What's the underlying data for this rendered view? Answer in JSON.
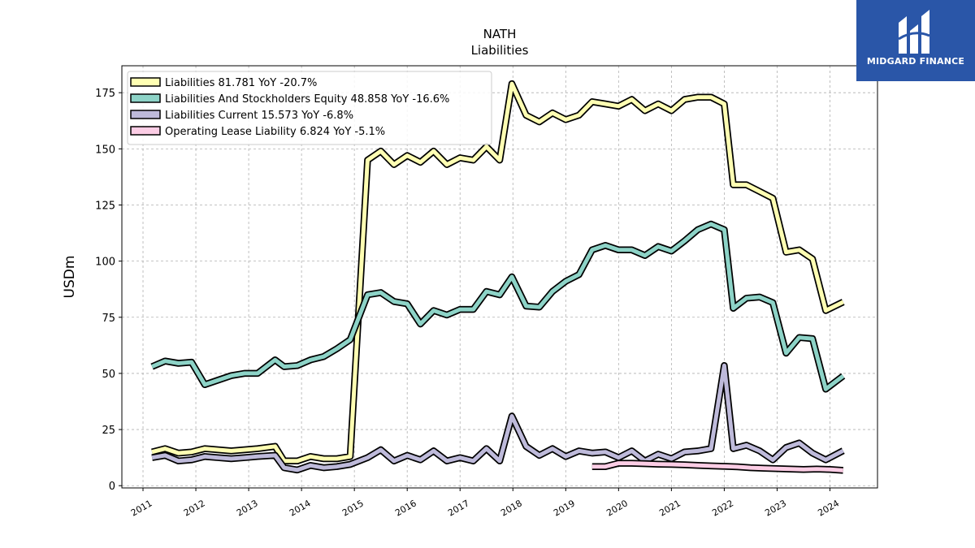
{
  "brand": {
    "name": "MIDGARD FINANCE",
    "color": "#2a56a8",
    "icon": "midgard-logo-icon"
  },
  "chart_data": {
    "type": "line",
    "title": "NATH",
    "subtitle": "Liabilities",
    "ylabel": "USDm",
    "xlabel": "",
    "ylim": [
      -1,
      187
    ],
    "xlim": [
      2010.6,
      2024.9
    ],
    "yticks": [
      0,
      25,
      50,
      75,
      100,
      125,
      150,
      175
    ],
    "xticks": [
      "2011",
      "2012",
      "2013",
      "2014",
      "2015",
      "2016",
      "2017",
      "2018",
      "2019",
      "2020",
      "2021",
      "2022",
      "2023",
      "2024"
    ],
    "grid": true,
    "legend_position": "top-left",
    "series": [
      {
        "name": "Liabilities",
        "legend_label": "Liabilities  81.781 YoY -20.7%",
        "color": "#ffffb3",
        "points": [
          [
            2011.17,
            15
          ],
          [
            2011.42,
            16.5
          ],
          [
            2011.67,
            14.5
          ],
          [
            2011.92,
            15
          ],
          [
            2012.17,
            16.5
          ],
          [
            2012.42,
            16
          ],
          [
            2012.67,
            15.5
          ],
          [
            2012.92,
            16
          ],
          [
            2013.17,
            16.5
          ],
          [
            2013.5,
            17.5
          ],
          [
            2013.67,
            11
          ],
          [
            2013.92,
            11
          ],
          [
            2014.17,
            13
          ],
          [
            2014.42,
            12
          ],
          [
            2014.67,
            12
          ],
          [
            2014.92,
            13
          ],
          [
            2015.25,
            145
          ],
          [
            2015.5,
            149
          ],
          [
            2015.75,
            143
          ],
          [
            2016.0,
            147
          ],
          [
            2016.25,
            144
          ],
          [
            2016.5,
            149
          ],
          [
            2016.75,
            143
          ],
          [
            2017.0,
            146
          ],
          [
            2017.25,
            145
          ],
          [
            2017.5,
            151
          ],
          [
            2017.75,
            145
          ],
          [
            2017.98,
            179
          ],
          [
            2018.25,
            165
          ],
          [
            2018.5,
            162
          ],
          [
            2018.75,
            166
          ],
          [
            2019.0,
            163
          ],
          [
            2019.25,
            165
          ],
          [
            2019.5,
            171
          ],
          [
            2019.75,
            170
          ],
          [
            2020.0,
            169
          ],
          [
            2020.25,
            172
          ],
          [
            2020.5,
            167
          ],
          [
            2020.75,
            170
          ],
          [
            2021.0,
            167
          ],
          [
            2021.25,
            172
          ],
          [
            2021.5,
            173
          ],
          [
            2021.75,
            173
          ],
          [
            2022.0,
            170
          ],
          [
            2022.17,
            134
          ],
          [
            2022.42,
            134
          ],
          [
            2022.67,
            131
          ],
          [
            2022.92,
            128
          ],
          [
            2023.17,
            104
          ],
          [
            2023.42,
            105
          ],
          [
            2023.67,
            101
          ],
          [
            2023.92,
            78
          ],
          [
            2024.25,
            81.781
          ]
        ]
      },
      {
        "name": "Liabilities And Stockholders Equity",
        "legend_label": "Liabilities And Stockholders Equity  48.858 YoY -16.6%",
        "color": "#8dd3c7",
        "points": [
          [
            2011.17,
            53
          ],
          [
            2011.42,
            55.5
          ],
          [
            2011.67,
            54.5
          ],
          [
            2011.92,
            55
          ],
          [
            2012.17,
            45
          ],
          [
            2012.42,
            47
          ],
          [
            2012.67,
            49
          ],
          [
            2012.92,
            50
          ],
          [
            2013.17,
            50
          ],
          [
            2013.5,
            56
          ],
          [
            2013.67,
            53
          ],
          [
            2013.92,
            53.5
          ],
          [
            2014.17,
            56
          ],
          [
            2014.42,
            57.5
          ],
          [
            2014.67,
            61
          ],
          [
            2014.92,
            65
          ],
          [
            2015.25,
            85
          ],
          [
            2015.5,
            86
          ],
          [
            2015.75,
            82
          ],
          [
            2016.0,
            81
          ],
          [
            2016.25,
            72
          ],
          [
            2016.5,
            78
          ],
          [
            2016.75,
            76
          ],
          [
            2017.0,
            78.5
          ],
          [
            2017.25,
            78.5
          ],
          [
            2017.5,
            86.5
          ],
          [
            2017.75,
            85
          ],
          [
            2017.98,
            93
          ],
          [
            2018.25,
            80
          ],
          [
            2018.5,
            79.5
          ],
          [
            2018.75,
            86.5
          ],
          [
            2019.0,
            91
          ],
          [
            2019.25,
            94
          ],
          [
            2019.5,
            105
          ],
          [
            2019.75,
            107
          ],
          [
            2020.0,
            105
          ],
          [
            2020.25,
            105
          ],
          [
            2020.5,
            102.5
          ],
          [
            2020.75,
            106.5
          ],
          [
            2021.0,
            104.5
          ],
          [
            2021.25,
            109
          ],
          [
            2021.5,
            114
          ],
          [
            2021.75,
            116.5
          ],
          [
            2022.0,
            114
          ],
          [
            2022.17,
            79
          ],
          [
            2022.42,
            83.5
          ],
          [
            2022.67,
            84
          ],
          [
            2022.92,
            81.5
          ],
          [
            2023.17,
            59
          ],
          [
            2023.42,
            66
          ],
          [
            2023.67,
            65.5
          ],
          [
            2023.92,
            43
          ],
          [
            2024.25,
            48.858
          ]
        ]
      },
      {
        "name": "Liabilities Current",
        "legend_label": "Liabilities Current  15.573 YoY -6.8%",
        "color": "#bebada",
        "points": [
          [
            2011.17,
            12.5
          ],
          [
            2011.42,
            13.5
          ],
          [
            2011.67,
            11
          ],
          [
            2011.92,
            11.5
          ],
          [
            2012.17,
            13
          ],
          [
            2012.42,
            12.5
          ],
          [
            2012.67,
            12
          ],
          [
            2012.92,
            12.5
          ],
          [
            2013.17,
            13
          ],
          [
            2013.5,
            13.5
          ],
          [
            2013.67,
            8
          ],
          [
            2013.92,
            7
          ],
          [
            2014.17,
            9
          ],
          [
            2014.42,
            8
          ],
          [
            2014.67,
            8.5
          ],
          [
            2014.92,
            9.5
          ],
          [
            2015.25,
            12.5
          ],
          [
            2015.5,
            16
          ],
          [
            2015.75,
            11
          ],
          [
            2016.0,
            13.5
          ],
          [
            2016.25,
            11.5
          ],
          [
            2016.5,
            15.5
          ],
          [
            2016.75,
            11
          ],
          [
            2017.0,
            12.5
          ],
          [
            2017.25,
            11
          ],
          [
            2017.5,
            16.5
          ],
          [
            2017.75,
            11
          ],
          [
            2017.98,
            31
          ],
          [
            2018.25,
            17.5
          ],
          [
            2018.5,
            13.5
          ],
          [
            2018.75,
            16.5
          ],
          [
            2019.0,
            13
          ],
          [
            2019.25,
            15.5
          ],
          [
            2019.5,
            14.5
          ],
          [
            2019.75,
            15
          ],
          [
            2020.0,
            12.5
          ],
          [
            2020.25,
            15.5
          ],
          [
            2020.5,
            11
          ],
          [
            2020.75,
            14
          ],
          [
            2021.0,
            12
          ],
          [
            2021.25,
            15
          ],
          [
            2021.5,
            15.5
          ],
          [
            2021.75,
            16.5
          ],
          [
            2022.0,
            53.5
          ],
          [
            2022.17,
            16.5
          ],
          [
            2022.42,
            18
          ],
          [
            2022.67,
            15.5
          ],
          [
            2022.92,
            11.5
          ],
          [
            2023.17,
            17
          ],
          [
            2023.42,
            19
          ],
          [
            2023.67,
            14.5
          ],
          [
            2023.92,
            11.5
          ],
          [
            2024.25,
            15.573
          ]
        ]
      },
      {
        "name": "Operating Lease Liability",
        "legend_label": "Operating Lease Liability  6.824 YoY -5.1%",
        "color": "#fccde5",
        "points": [
          [
            2019.5,
            8.5
          ],
          [
            2019.75,
            8.5
          ],
          [
            2020.0,
            10
          ],
          [
            2020.25,
            10
          ],
          [
            2020.5,
            9.8
          ],
          [
            2020.75,
            9.6
          ],
          [
            2021.0,
            9.5
          ],
          [
            2021.25,
            9.3
          ],
          [
            2021.5,
            9
          ],
          [
            2021.75,
            8.8
          ],
          [
            2022.0,
            8.6
          ],
          [
            2022.25,
            8.4
          ],
          [
            2022.5,
            8
          ],
          [
            2022.75,
            7.8
          ],
          [
            2023.0,
            7.6
          ],
          [
            2023.25,
            7.4
          ],
          [
            2023.5,
            7.2
          ],
          [
            2023.75,
            7.4
          ],
          [
            2024.0,
            7.2
          ],
          [
            2024.25,
            6.824
          ]
        ]
      }
    ]
  }
}
